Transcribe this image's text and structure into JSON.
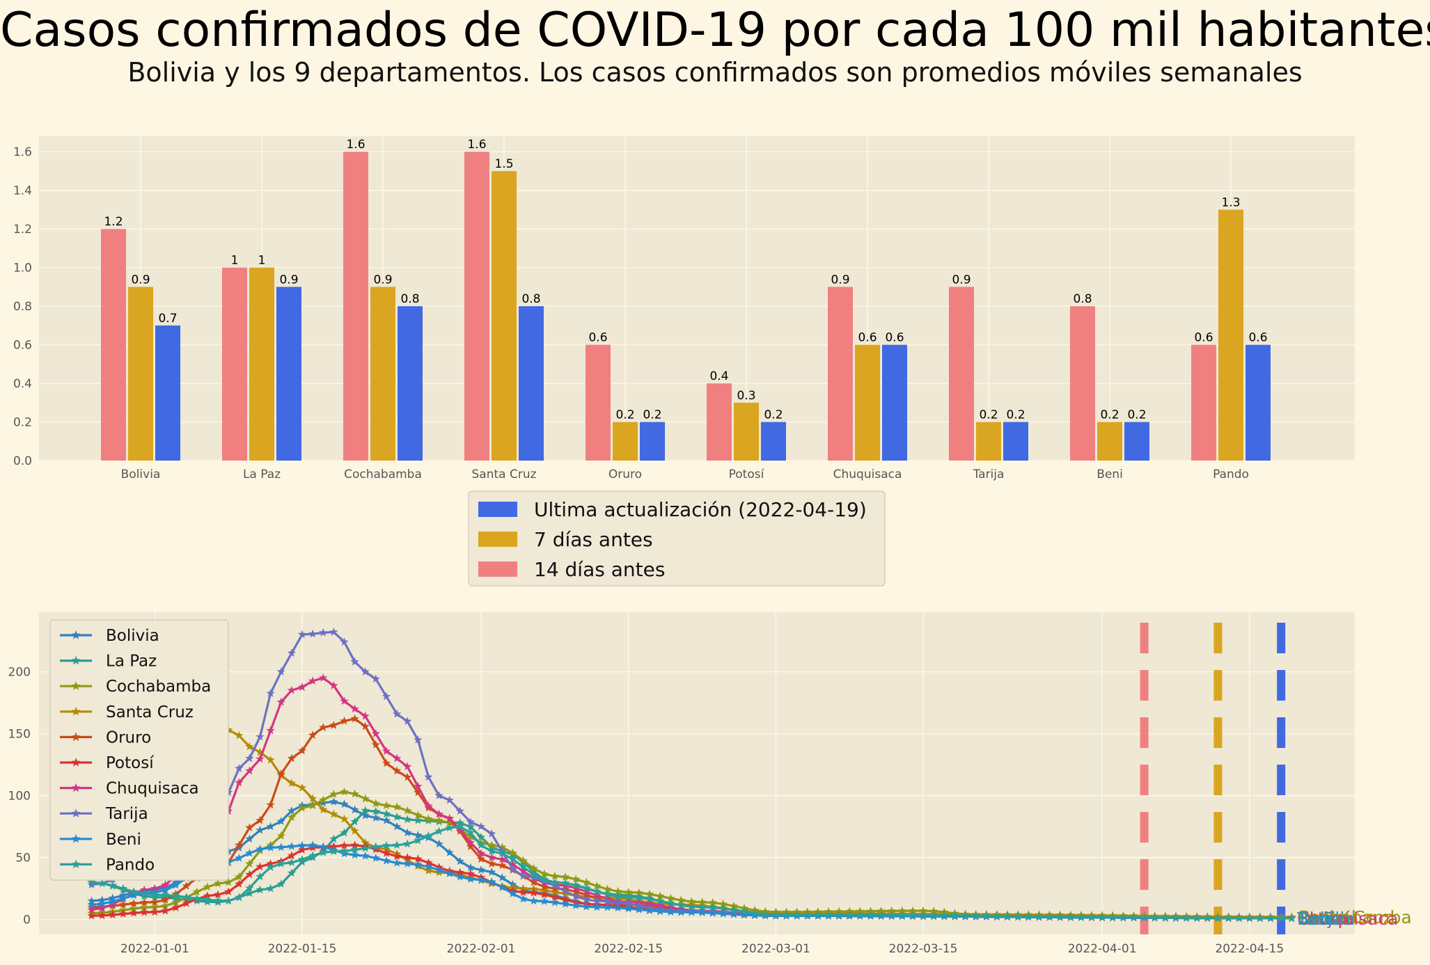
{
  "title": "Casos confirmados de COVID-19 por cada 100 mil habitantes",
  "subtitle": "Bolivia y los 9 departamentos. Los casos confirmados son promedios móviles semanales",
  "colors": {
    "background": "#fdf6e3",
    "plot_bg": "#eee8d5",
    "latest": "#4169e1",
    "days7": "#daa520",
    "days14": "#f08080"
  },
  "chart_data": [
    {
      "type": "bar",
      "title": "",
      "xlabel": "",
      "ylabel": "",
      "ylim": [
        0,
        1.68
      ],
      "yticks": [
        "0.0",
        "0.2",
        "0.4",
        "0.6",
        "0.8",
        "1.0",
        "1.2",
        "1.4",
        "1.6"
      ],
      "grid": true,
      "legend_position": "below",
      "categories": [
        "Bolivia",
        "La Paz",
        "Cochabamba",
        "Santa Cruz",
        "Oruro",
        "Potosí",
        "Chuquisaca",
        "Tarija",
        "Beni",
        "Pando"
      ],
      "series": [
        {
          "name": "14 días antes",
          "color": "#f08080",
          "values": [
            1.2,
            1,
            1.6,
            1.6,
            0.6,
            0.4,
            0.9,
            0.9,
            0.8,
            0.6
          ],
          "labels": [
            "1.2",
            "1",
            "1.6",
            "1.6",
            "0.6",
            "0.4",
            "0.9",
            "0.9",
            "0.8",
            "0.6"
          ]
        },
        {
          "name": "7 días antes",
          "color": "#daa520",
          "values": [
            0.9,
            1,
            0.9,
            1.5,
            0.2,
            0.3,
            0.6,
            0.2,
            0.2,
            1.3
          ],
          "labels": [
            "0.9",
            "1",
            "0.9",
            "1.5",
            "0.2",
            "0.3",
            "0.6",
            "0.2",
            "0.2",
            "1.3"
          ]
        },
        {
          "name": "Ultima actualización (2022-04-19)",
          "color": "#4169e1",
          "values": [
            0.7,
            0.9,
            0.8,
            0.8,
            0.2,
            0.2,
            0.6,
            0.2,
            0.2,
            0.6
          ],
          "labels": [
            "0.7",
            "0.9",
            "0.8",
            "0.8",
            "0.2",
            "0.2",
            "0.6",
            "0.2",
            "0.2",
            "0.6"
          ]
        }
      ],
      "legend_order": [
        "Ultima actualización (2022-04-19)",
        "7 días antes",
        "14 días antes"
      ]
    },
    {
      "type": "line",
      "title": "",
      "xlabel": "",
      "ylabel": "",
      "x_start": "2021-12-26",
      "x_end": "2022-04-19",
      "xlim": [
        "2021-12-21",
        "2022-04-25"
      ],
      "ylim": [
        -12,
        248
      ],
      "yticks": [
        0,
        50,
        100,
        150,
        200
      ],
      "xticks": [
        "2022-01-01",
        "2022-01-15",
        "2022-02-01",
        "2022-02-15",
        "2022-03-01",
        "2022-03-15",
        "2022-04-01",
        "2022-04-15"
      ],
      "grid": true,
      "legend_position": "upper left",
      "marker": "star",
      "reference_lines": [
        {
          "date": "2022-04-05",
          "color": "#f08080",
          "style": "dashed"
        },
        {
          "date": "2022-04-12",
          "color": "#daa520",
          "style": "dashed"
        },
        {
          "date": "2022-04-18",
          "color": "#4169e1",
          "style": "dashed"
        }
      ],
      "end_labels": [
        "Bolivia",
        "La Paz",
        "Cochabamba",
        "Santa Cruz",
        "Oruro",
        "Potosí",
        "Chuquisaca",
        "Tarija",
        "Beni",
        "Pando"
      ],
      "series": [
        {
          "name": "Bolivia",
          "color": "#3182bd",
          "key_points": [
            [
              "2021-12-26",
              15
            ],
            [
              "2022-01-01",
              24
            ],
            [
              "2022-01-08",
              55
            ],
            [
              "2022-01-12",
              75
            ],
            [
              "2022-01-15",
              92
            ],
            [
              "2022-01-18",
              95
            ],
            [
              "2022-01-22",
              82
            ],
            [
              "2022-01-26",
              68
            ],
            [
              "2022-02-01",
              40
            ],
            [
              "2022-02-06",
              22
            ],
            [
              "2022-02-12",
              12
            ],
            [
              "2022-02-20",
              6
            ],
            [
              "2022-03-01",
              3
            ],
            [
              "2022-04-19",
              1
            ]
          ]
        },
        {
          "name": "La Paz",
          "color": "#2a9d8f",
          "key_points": [
            [
              "2021-12-26",
              30
            ],
            [
              "2022-01-01",
              18
            ],
            [
              "2022-01-07",
              14
            ],
            [
              "2022-01-12",
              25
            ],
            [
              "2022-01-16",
              50
            ],
            [
              "2022-01-19",
              70
            ],
            [
              "2022-01-21",
              88
            ],
            [
              "2022-01-26",
              80
            ],
            [
              "2022-01-30",
              78
            ],
            [
              "2022-02-03",
              55
            ],
            [
              "2022-02-08",
              30
            ],
            [
              "2022-02-14",
              20
            ],
            [
              "2022-02-22",
              10
            ],
            [
              "2022-03-01",
              4
            ],
            [
              "2022-04-19",
              1
            ]
          ]
        },
        {
          "name": "Cochabamba",
          "color": "#8f9a12",
          "key_points": [
            [
              "2021-12-26",
              5
            ],
            [
              "2022-01-01",
              10
            ],
            [
              "2022-01-08",
              30
            ],
            [
              "2022-01-12",
              60
            ],
            [
              "2022-01-15",
              90
            ],
            [
              "2022-01-19",
              103
            ],
            [
              "2022-01-23",
              92
            ],
            [
              "2022-01-28",
              80
            ],
            [
              "2022-02-02",
              60
            ],
            [
              "2022-02-08",
              35
            ],
            [
              "2022-02-15",
              22
            ],
            [
              "2022-02-22",
              14
            ],
            [
              "2022-03-01",
              6
            ],
            [
              "2022-03-15",
              7
            ],
            [
              "2022-03-20",
              4
            ],
            [
              "2022-04-19",
              2
            ]
          ]
        },
        {
          "name": "Santa Cruz",
          "color": "#b58900",
          "key_points": [
            [
              "2021-12-26",
              32
            ],
            [
              "2021-12-30",
              50
            ],
            [
              "2022-01-02",
              110
            ],
            [
              "2022-01-05",
              150
            ],
            [
              "2022-01-08",
              153
            ],
            [
              "2022-01-11",
              135
            ],
            [
              "2022-01-14",
              110
            ],
            [
              "2022-01-18",
              85
            ],
            [
              "2022-01-22",
              58
            ],
            [
              "2022-01-28",
              38
            ],
            [
              "2022-02-05",
              25
            ],
            [
              "2022-02-12",
              18
            ],
            [
              "2022-02-20",
              12
            ],
            [
              "2022-03-01",
              5
            ],
            [
              "2022-04-19",
              2
            ]
          ]
        },
        {
          "name": "Oruro",
          "color": "#cb4b16",
          "key_points": [
            [
              "2021-12-26",
              10
            ],
            [
              "2022-01-01",
              14
            ],
            [
              "2022-01-07",
              40
            ],
            [
              "2022-01-11",
              80
            ],
            [
              "2022-01-14",
              130
            ],
            [
              "2022-01-17",
              155
            ],
            [
              "2022-01-20",
              162
            ],
            [
              "2022-01-24",
              120
            ],
            [
              "2022-01-28",
              85
            ],
            [
              "2022-02-02",
              45
            ],
            [
              "2022-02-08",
              25
            ],
            [
              "2022-02-15",
              12
            ],
            [
              "2022-02-22",
              6
            ],
            [
              "2022-03-01",
              3
            ],
            [
              "2022-04-19",
              1
            ]
          ]
        },
        {
          "name": "Potosí",
          "color": "#dc322f",
          "key_points": [
            [
              "2021-12-26",
              3
            ],
            [
              "2022-01-01",
              6
            ],
            [
              "2022-01-07",
              20
            ],
            [
              "2022-01-12",
              45
            ],
            [
              "2022-01-16",
              58
            ],
            [
              "2022-01-20",
              60
            ],
            [
              "2022-01-25",
              50
            ],
            [
              "2022-01-30",
              38
            ],
            [
              "2022-02-05",
              22
            ],
            [
              "2022-02-12",
              12
            ],
            [
              "2022-02-20",
              6
            ],
            [
              "2022-03-01",
              3
            ],
            [
              "2022-04-19",
              1
            ]
          ]
        },
        {
          "name": "Chuquisaca",
          "color": "#d33682",
          "key_points": [
            [
              "2021-12-26",
              8
            ],
            [
              "2022-01-01",
              25
            ],
            [
              "2022-01-06",
              55
            ],
            [
              "2022-01-10",
              120
            ],
            [
              "2022-01-14",
              185
            ],
            [
              "2022-01-17",
              195
            ],
            [
              "2022-01-20",
              170
            ],
            [
              "2022-01-24",
              130
            ],
            [
              "2022-01-28",
              85
            ],
            [
              "2022-02-02",
              50
            ],
            [
              "2022-02-08",
              28
            ],
            [
              "2022-02-15",
              14
            ],
            [
              "2022-02-22",
              7
            ],
            [
              "2022-03-01",
              3
            ],
            [
              "2022-04-19",
              1
            ]
          ]
        },
        {
          "name": "Tarija",
          "color": "#6c71c4",
          "key_points": [
            [
              "2021-12-26",
              28
            ],
            [
              "2022-01-01",
              45
            ],
            [
              "2022-01-06",
              75
            ],
            [
              "2022-01-10",
              130
            ],
            [
              "2022-01-13",
              200
            ],
            [
              "2022-01-15",
              230
            ],
            [
              "2022-01-18",
              232
            ],
            [
              "2022-01-21",
              200
            ],
            [
              "2022-01-25",
              160
            ],
            [
              "2022-01-28",
              100
            ],
            [
              "2022-02-01",
              75
            ],
            [
              "2022-02-05",
              35
            ],
            [
              "2022-02-12",
              15
            ],
            [
              "2022-02-20",
              7
            ],
            [
              "2022-03-01",
              3
            ],
            [
              "2022-04-19",
              1
            ]
          ]
        },
        {
          "name": "Beni",
          "color": "#268bd2",
          "key_points": [
            [
              "2021-12-26",
              12
            ],
            [
              "2022-01-01",
              22
            ],
            [
              "2022-01-07",
              45
            ],
            [
              "2022-01-12",
              58
            ],
            [
              "2022-01-16",
              60
            ],
            [
              "2022-01-20",
              52
            ],
            [
              "2022-01-25",
              45
            ],
            [
              "2022-02-01",
              32
            ],
            [
              "2022-02-06",
              15
            ],
            [
              "2022-02-12",
              10
            ],
            [
              "2022-02-20",
              6
            ],
            [
              "2022-03-01",
              3
            ],
            [
              "2022-04-19",
              1
            ]
          ]
        },
        {
          "name": "Pando",
          "color": "#2aa198",
          "key_points": [
            [
              "2021-12-26",
              30
            ],
            [
              "2022-01-01",
              20
            ],
            [
              "2022-01-08",
              15
            ],
            [
              "2022-01-13",
              45
            ],
            [
              "2022-01-18",
              55
            ],
            [
              "2022-01-24",
              60
            ],
            [
              "2022-01-30",
              75
            ],
            [
              "2022-02-02",
              55
            ],
            [
              "2022-02-08",
              30
            ],
            [
              "2022-02-15",
              18
            ],
            [
              "2022-02-22",
              10
            ],
            [
              "2022-03-01",
              4
            ],
            [
              "2022-04-19",
              1
            ]
          ]
        }
      ]
    }
  ]
}
